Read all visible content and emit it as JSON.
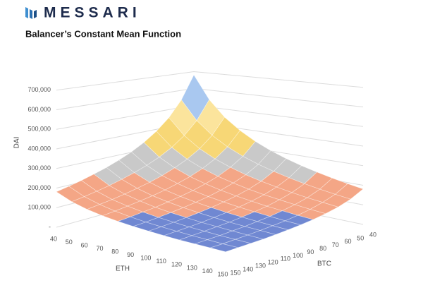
{
  "brand": "MESSARI",
  "chart_data": {
    "type": "surface",
    "title": "Balancer’s Constant Mean Function",
    "xlabel": "ETH",
    "ylabel": "BTC",
    "zlabel": "DAI",
    "x": [
      40,
      50,
      60,
      70,
      80,
      90,
      100,
      110,
      120,
      130,
      140,
      150
    ],
    "y": [
      40,
      50,
      60,
      70,
      80,
      90,
      100,
      110,
      120,
      130,
      140,
      150
    ],
    "xlim": [
      40,
      150
    ],
    "ylim": [
      40,
      150
    ],
    "zlim": [
      0,
      700000
    ],
    "zticks": [
      {
        "value": 0,
        "label": "-"
      },
      {
        "value": 100000,
        "label": "100,000"
      },
      {
        "value": 200000,
        "label": "200,000"
      },
      {
        "value": 300000,
        "label": "300,000"
      },
      {
        "value": 400000,
        "label": "400,000"
      },
      {
        "value": 500000,
        "label": "500,000"
      },
      {
        "value": 600000,
        "label": "600,000"
      },
      {
        "value": 700000,
        "label": "700,000"
      }
    ],
    "band_colors": [
      "#7088d2",
      "#f4a686",
      "#c9c9c9",
      "#f7d776",
      "#fbe49c",
      "#a9c8f0",
      "#9fd08a"
    ],
    "grid": true,
    "z": [
      [
        680000,
        544000,
        453000,
        389000,
        340000,
        302000,
        272000,
        247000,
        227000,
        209000,
        194000,
        181000
      ],
      [
        544000,
        435000,
        363000,
        311000,
        272000,
        242000,
        218000,
        198000,
        181000,
        167000,
        155000,
        145000
      ],
      [
        453000,
        363000,
        302000,
        259000,
        227000,
        201000,
        181000,
        165000,
        151000,
        139000,
        130000,
        121000
      ],
      [
        389000,
        311000,
        259000,
        222000,
        194000,
        173000,
        155000,
        141000,
        130000,
        120000,
        111000,
        104000
      ],
      [
        340000,
        272000,
        227000,
        194000,
        170000,
        151000,
        136000,
        124000,
        113000,
        105000,
        97000,
        91000
      ],
      [
        302000,
        242000,
        201000,
        173000,
        151000,
        134000,
        121000,
        110000,
        101000,
        93000,
        86000,
        81000
      ],
      [
        272000,
        218000,
        181000,
        155000,
        136000,
        121000,
        109000,
        99000,
        91000,
        84000,
        78000,
        73000
      ],
      [
        247000,
        198000,
        165000,
        141000,
        124000,
        110000,
        99000,
        90000,
        82000,
        76000,
        71000,
        66000
      ],
      [
        227000,
        181000,
        151000,
        130000,
        113000,
        101000,
        91000,
        82000,
        76000,
        70000,
        65000,
        60000
      ],
      [
        209000,
        167000,
        139000,
        120000,
        105000,
        93000,
        84000,
        76000,
        70000,
        64000,
        60000,
        56000
      ],
      [
        194000,
        155000,
        130000,
        111000,
        97000,
        86000,
        78000,
        71000,
        65000,
        60000,
        55000,
        52000
      ],
      [
        181000,
        145000,
        121000,
        104000,
        91000,
        81000,
        73000,
        66000,
        60000,
        56000,
        52000,
        48000
      ]
    ]
  }
}
